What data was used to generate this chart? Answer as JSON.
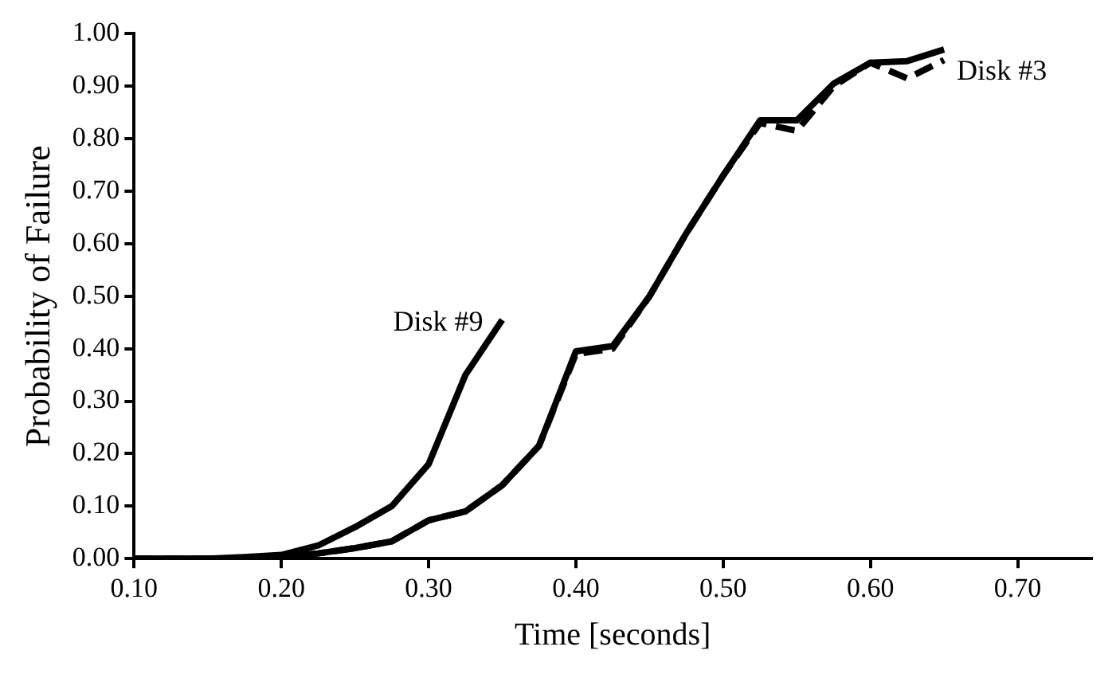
{
  "chart_data": {
    "type": "line",
    "xlabel": "Time [seconds]",
    "ylabel": "Probability of Failure",
    "xlim": [
      0.1,
      0.75
    ],
    "xticks": [
      {
        "value": 0.1,
        "label": "0.10"
      },
      {
        "value": 0.2,
        "label": "0.20"
      },
      {
        "value": 0.3,
        "label": "0.30"
      },
      {
        "value": 0.4,
        "label": "0.40"
      },
      {
        "value": 0.5,
        "label": "0.50"
      },
      {
        "value": 0.6,
        "label": "0.60"
      },
      {
        "value": 0.7,
        "label": "0.70"
      }
    ],
    "ylim": [
      0,
      1
    ],
    "yticks": [
      {
        "value": 0,
        "label": "0.00"
      },
      {
        "value": 0.1,
        "label": "0.10"
      },
      {
        "value": 0.2,
        "label": "0.20"
      },
      {
        "value": 0.3,
        "label": "0.30"
      },
      {
        "value": 0.4,
        "label": "0.40"
      },
      {
        "value": 0.5,
        "label": "0.50"
      },
      {
        "value": 0.6,
        "label": "0.60"
      },
      {
        "value": 0.7,
        "label": "0.70"
      },
      {
        "value": 0.8,
        "label": "0.80"
      },
      {
        "value": 0.9,
        "label": "0.90"
      },
      {
        "value": 1,
        "label": "1.00"
      }
    ],
    "grid": false,
    "legend": false,
    "marker": "none",
    "series": [
      {
        "name": "Disk #9",
        "color": "#000000",
        "line_style": "solid",
        "x": [
          0.1,
          0.125,
          0.15,
          0.175,
          0.2,
          0.225,
          0.25,
          0.275,
          0.3,
          0.325,
          0.35
        ],
        "values": [
          0,
          0,
          0,
          0.003,
          0.007,
          0.025,
          0.06,
          0.1,
          0.18,
          0.35,
          0.455
        ]
      },
      {
        "name": "Disk #3",
        "color": "#000000",
        "line_style": "solid",
        "x": [
          0.1,
          0.125,
          0.15,
          0.175,
          0.2,
          0.225,
          0.25,
          0.275,
          0.3,
          0.325,
          0.35,
          0.375,
          0.4,
          0.425,
          0.45,
          0.475,
          0.5,
          0.525,
          0.55,
          0.575,
          0.6,
          0.625,
          0.65
        ],
        "values": [
          0,
          0,
          0,
          0,
          0.003,
          0.01,
          0.02,
          0.033,
          0.073,
          0.09,
          0.14,
          0.215,
          0.395,
          0.405,
          0.5,
          0.62,
          0.73,
          0.835,
          0.835,
          0.905,
          0.945,
          0.948,
          0.97
        ]
      },
      {
        "color": "#000000",
        "line_style": "dashed",
        "x": [
          0.1,
          0.125,
          0.15,
          0.175,
          0.2,
          0.225,
          0.25,
          0.275,
          0.3,
          0.325,
          0.35,
          0.375,
          0.4,
          0.425,
          0.45,
          0.475,
          0.5,
          0.525,
          0.55,
          0.575,
          0.6,
          0.625,
          0.65
        ],
        "values": [
          0,
          0,
          0,
          0,
          0.003,
          0.01,
          0.02,
          0.033,
          0.073,
          0.09,
          0.14,
          0.215,
          0.39,
          0.4,
          0.5,
          0.62,
          0.73,
          0.83,
          0.815,
          0.9,
          0.945,
          0.915,
          0.95
        ]
      }
    ]
  }
}
